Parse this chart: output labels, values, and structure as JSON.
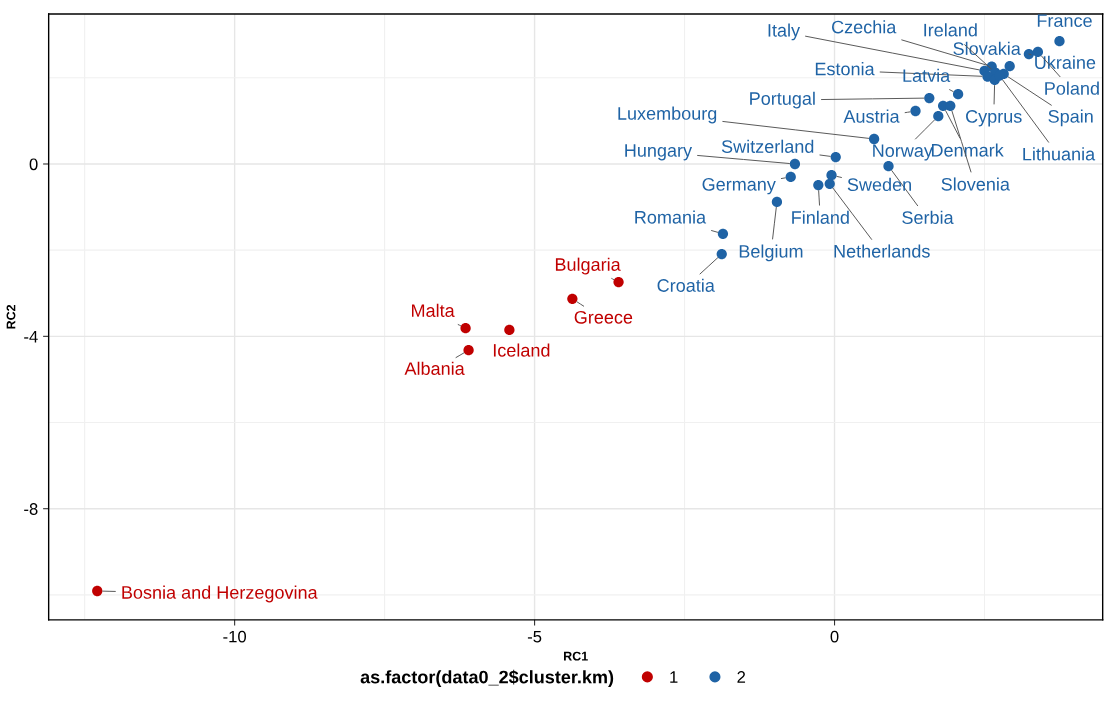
{
  "chart_data": {
    "type": "scatter",
    "xlabel": "RC1",
    "ylabel": "RC2",
    "legend_title": "as.factor(data0_2$cluster.km)",
    "legend": "bottom",
    "grid": true,
    "marker": "circle",
    "xlim": [
      -13.1,
      4.47
    ],
    "ylim": [
      -10.58,
      3.48
    ],
    "xticks": [
      -10,
      -5,
      0
    ],
    "yticks": [
      0,
      -4,
      -8
    ],
    "series": [
      {
        "name": "1",
        "color": "#c00000",
        "x": [
          -3.6,
          -4.37,
          -6.15,
          -5.42,
          -6.1,
          -12.29
        ],
        "values": [
          -2.74,
          -3.13,
          -3.81,
          -3.85,
          -4.32,
          -9.91
        ],
        "value_labels": [
          "Bulgaria",
          "Greece",
          "Malta",
          "Iceland",
          "Albania",
          "Bosnia and Herzegovina"
        ]
      },
      {
        "name": "2",
        "color": "#1f63a5",
        "x": [
          3.75,
          3.24,
          3.39,
          2.92,
          2.5,
          2.62,
          2.68,
          2.55,
          2.67,
          2.82,
          2.75,
          2.06,
          1.58,
          1.35,
          1.81,
          1.93,
          1.73,
          0.66,
          0.02,
          -0.66,
          -0.73,
          0.9,
          -0.05,
          -0.08,
          -0.27,
          -0.96,
          -1.86,
          -1.88
        ],
        "values": [
          2.85,
          2.55,
          2.6,
          2.27,
          2.16,
          2.26,
          2.12,
          2.03,
          1.95,
          2.09,
          2.05,
          1.62,
          1.53,
          1.23,
          1.35,
          1.35,
          1.11,
          0.58,
          0.16,
          0.0,
          -0.3,
          -0.05,
          -0.26,
          -0.46,
          -0.49,
          -0.88,
          -1.62,
          -2.09
        ],
        "value_labels": [
          "France",
          "Ukraine",
          "Poland",
          "Slovakia",
          "Italy",
          "Czechia",
          "Ireland",
          "Estonia",
          "Cyprus",
          "Spain",
          "Lithuania",
          "Latvia",
          "Portugal",
          "Austria",
          "Denmark",
          "Slovenia",
          "Norway",
          "Luxembourg",
          "Switzerland",
          "Hungary",
          "Germany",
          "Serbia",
          "Sweden",
          "Netherlands",
          "Finland",
          "Belgium",
          "Romania",
          "Croatia"
        ]
      }
    ]
  }
}
